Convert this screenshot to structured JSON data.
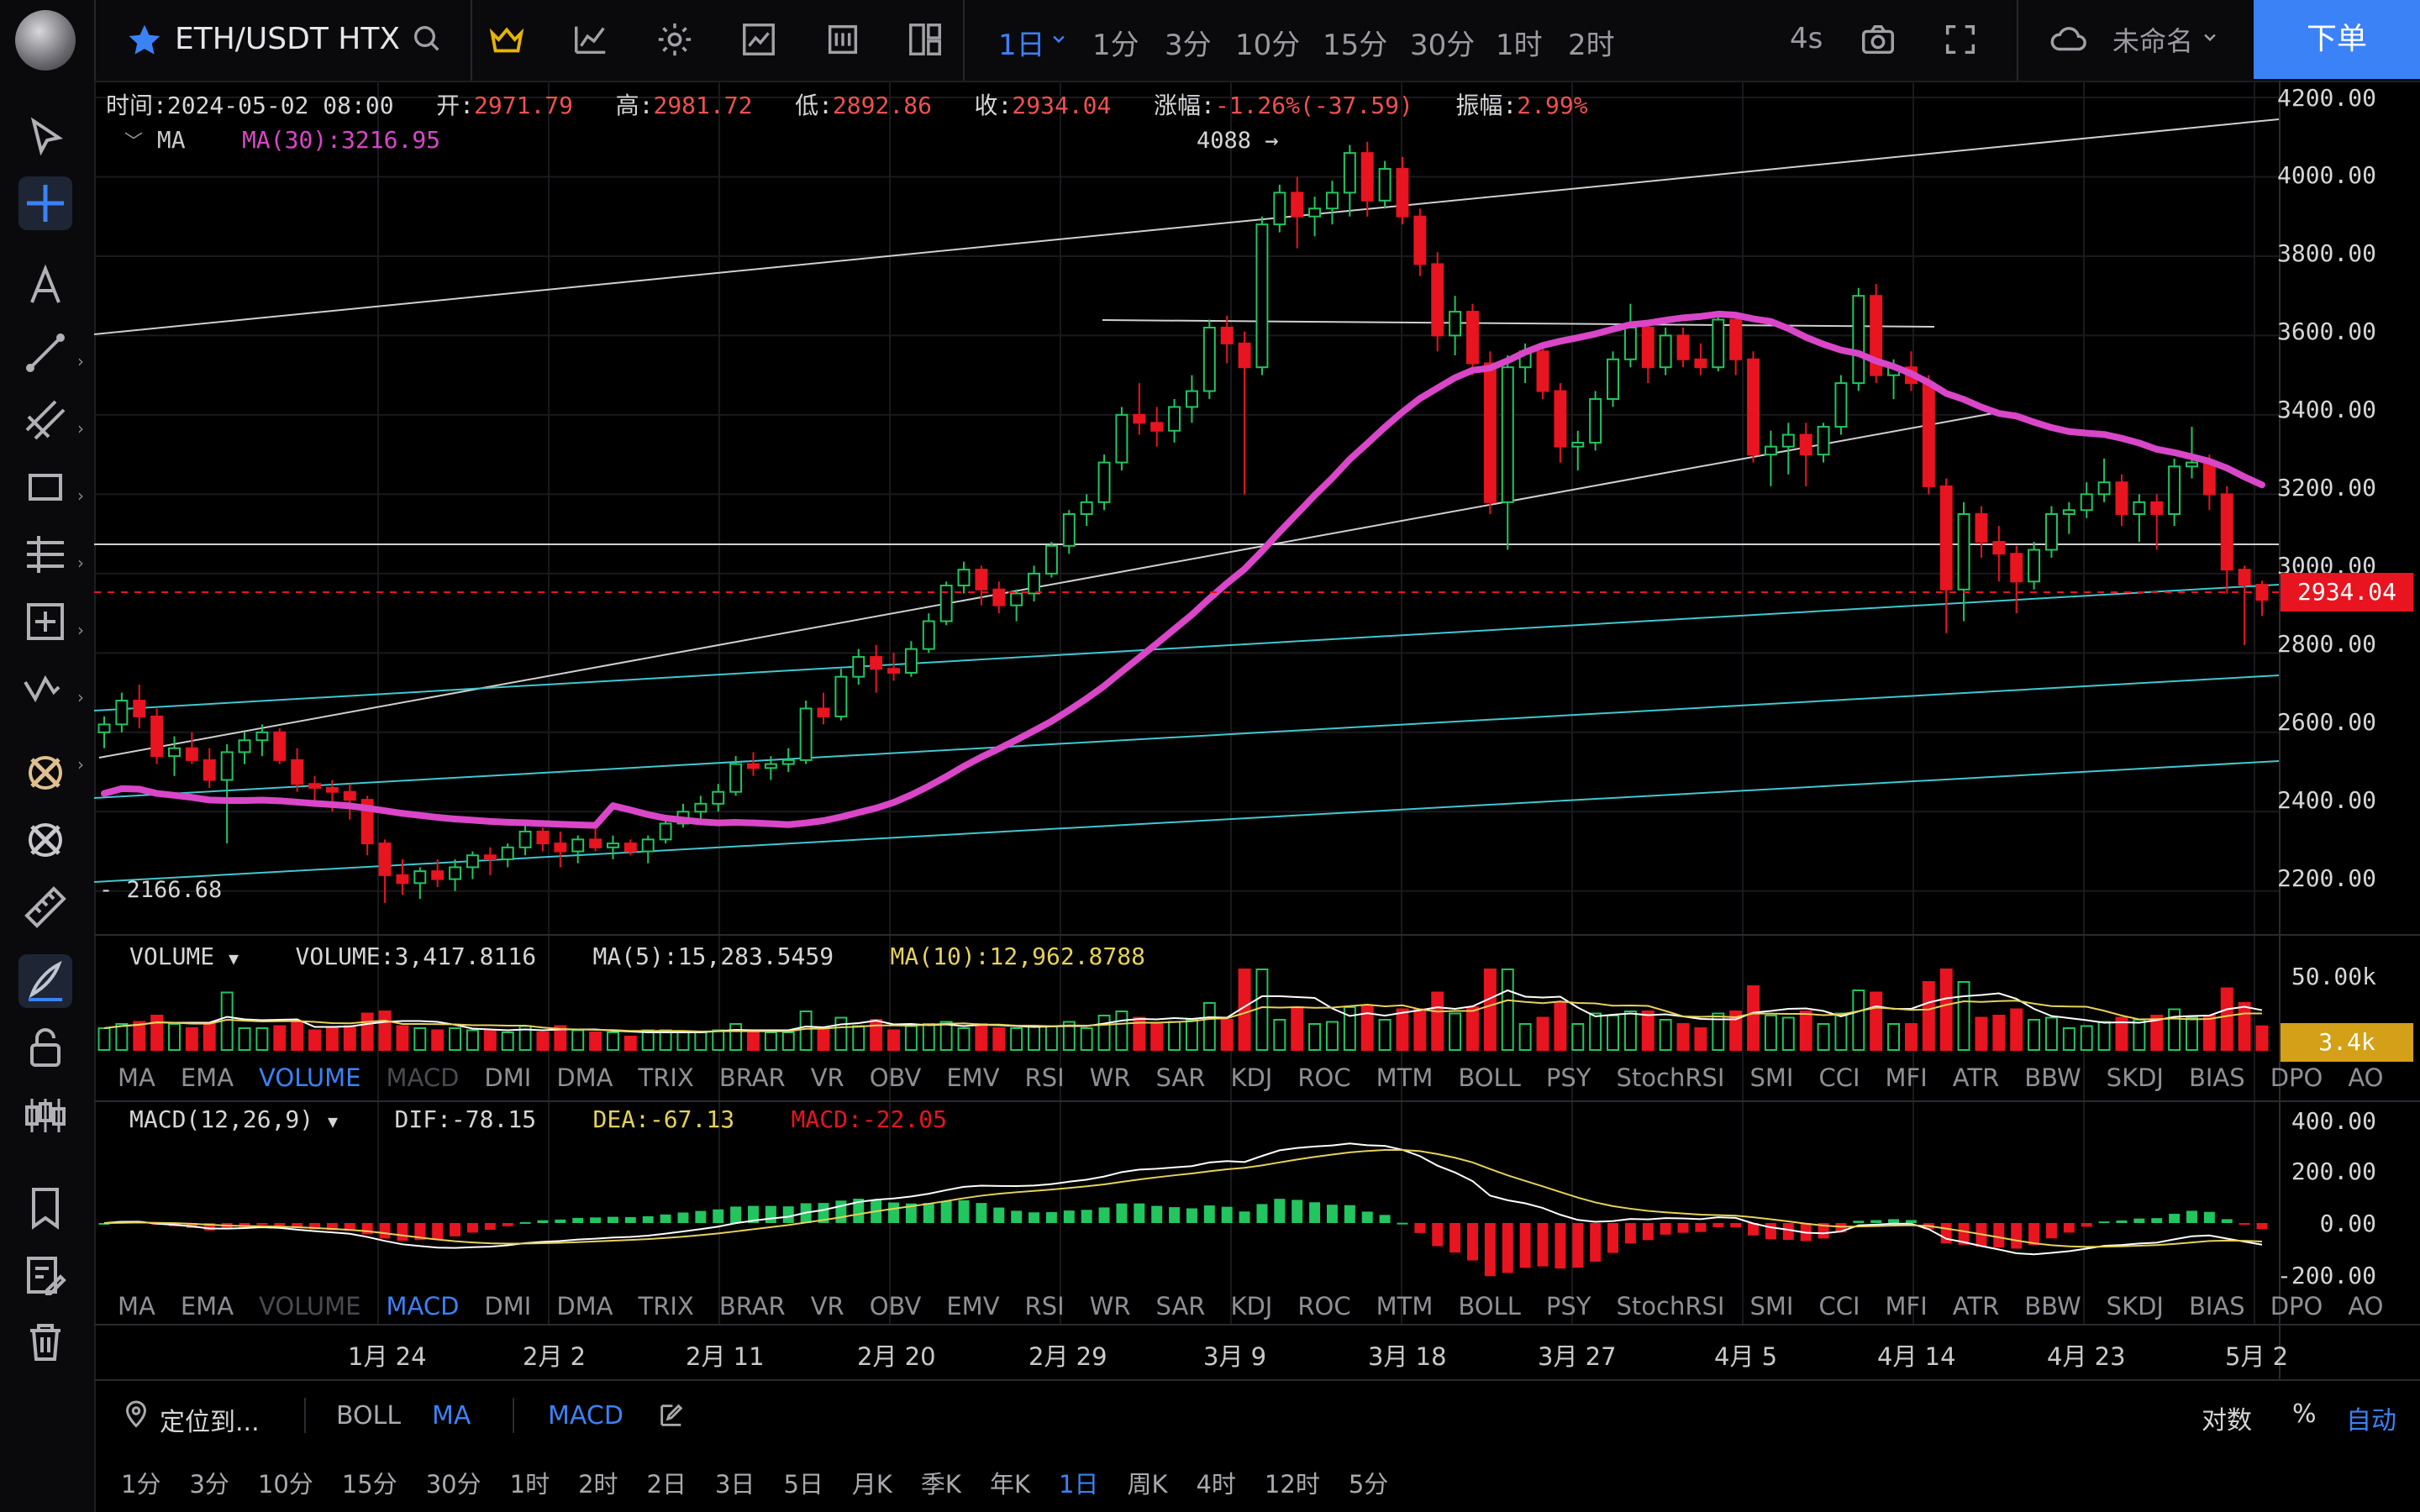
{
  "header": {
    "symbol": "ETH/USDT HTX",
    "timeframes": [
      "1日",
      "1分",
      "3分",
      "10分",
      "15分",
      "30分",
      "1时",
      "2时"
    ],
    "active_timeframe": "1日",
    "refresh": "4s",
    "workspace": "未命名",
    "order_button": "下单"
  },
  "ohlc": {
    "time_label": "时间:",
    "time": "2024-05-02 08:00",
    "open_label": "开:",
    "open": "2971.79",
    "high_label": "高:",
    "high": "2981.72",
    "low_label": "低:",
    "low": "2892.86",
    "close_label": "收:",
    "close": "2934.04",
    "change_label": "涨幅:",
    "change": "-1.26%(-37.59)",
    "amp_label": "振幅:",
    "amp": "2.99%"
  },
  "ma_legend": {
    "name": "MA",
    "ma30": "MA(30):3216.95"
  },
  "price_axis": {
    "ticks": [
      "4200.00",
      "4000.00",
      "3800.00",
      "3600.00",
      "3400.00",
      "3200.00",
      "3000.00",
      "2800.00",
      "2600.00",
      "2400.00",
      "2200.00"
    ],
    "current": "2934.04",
    "high_marker": "4088",
    "low_marker": "2166.68"
  },
  "volume": {
    "name": "VOLUME",
    "value": "VOLUME:3,417.8116",
    "ma5": "MA(5):15,283.5459",
    "ma10": "MA(10):12,962.8788",
    "axis_top": "50.00k",
    "current": "3.4k"
  },
  "indicator_tabs": [
    "MA",
    "EMA",
    "VOLUME",
    "MACD",
    "DMI",
    "DMA",
    "TRIX",
    "BRAR",
    "VR",
    "OBV",
    "EMV",
    "RSI",
    "WR",
    "SAR",
    "KDJ",
    "ROC",
    "MTM",
    "BOLL",
    "PSY",
    "StochRSI",
    "SMI",
    "CCI",
    "MFI",
    "ATR",
    "BBW",
    "SKDJ",
    "BIAS",
    "DPO",
    "AO"
  ],
  "macd": {
    "name": "MACD(12,26,9)",
    "dif": "DIF:-78.15",
    "dea": "DEA:-67.13",
    "macd": "MACD:-22.05",
    "ticks": [
      "400.00",
      "200.00",
      "0.00",
      "-200.00"
    ]
  },
  "x_axis": [
    "1月 24",
    "2月 2",
    "2月 11",
    "2月 20",
    "2月 29",
    "3月 9",
    "3月 18",
    "3月 27",
    "4月 5",
    "4月 14",
    "4月 23",
    "5月 2"
  ],
  "bottom_bar": {
    "locate": "定位到...",
    "boll": "BOLL",
    "ma": "MA",
    "macd": "MACD",
    "log": "对数",
    "percent": "%",
    "auto": "自动",
    "intervals": [
      "1分",
      "3分",
      "10分",
      "15分",
      "30分",
      "1时",
      "2时",
      "2日",
      "3日",
      "5日",
      "月K",
      "季K",
      "年K",
      "1日",
      "周K",
      "4时",
      "12时",
      "5分"
    ],
    "active_interval": "1日"
  },
  "colors": {
    "up": "#22c55e",
    "down": "#e8141f",
    "ma": "#d946c8",
    "accent": "#3b82f6",
    "badge_price": "#e8141f",
    "badge_vol": "#d4a017"
  },
  "chart_data": {
    "type": "candlestick",
    "title": "ETH/USDT HTX",
    "x_range": [
      "2024-01-14",
      "2024-05-02"
    ],
    "ylim": [
      2100,
      4200
    ],
    "grid": true,
    "highest_marked": 4088,
    "lowest_marked": 2166.68,
    "last_close": 2934.04,
    "candles_ohlc": [
      [
        2600,
        2640,
        2560,
        2620
      ],
      [
        2620,
        2700,
        2600,
        2680
      ],
      [
        2680,
        2720,
        2610,
        2640
      ],
      [
        2640,
        2660,
        2520,
        2540
      ],
      [
        2540,
        2590,
        2490,
        2560
      ],
      [
        2560,
        2600,
        2520,
        2530
      ],
      [
        2530,
        2560,
        2460,
        2480
      ],
      [
        2480,
        2570,
        2320,
        2550
      ],
      [
        2550,
        2600,
        2520,
        2580
      ],
      [
        2580,
        2620,
        2540,
        2600
      ],
      [
        2600,
        2610,
        2520,
        2530
      ],
      [
        2530,
        2560,
        2450,
        2470
      ],
      [
        2470,
        2490,
        2420,
        2460
      ],
      [
        2460,
        2480,
        2400,
        2450
      ],
      [
        2450,
        2470,
        2380,
        2430
      ],
      [
        2430,
        2440,
        2290,
        2320
      ],
      [
        2320,
        2330,
        2170,
        2240
      ],
      [
        2240,
        2280,
        2190,
        2220
      ],
      [
        2220,
        2260,
        2180,
        2250
      ],
      [
        2250,
        2280,
        2210,
        2230
      ],
      [
        2230,
        2280,
        2200,
        2260
      ],
      [
        2260,
        2300,
        2230,
        2290
      ],
      [
        2290,
        2310,
        2240,
        2280
      ],
      [
        2280,
        2320,
        2260,
        2310
      ],
      [
        2310,
        2380,
        2290,
        2350
      ],
      [
        2350,
        2360,
        2300,
        2320
      ],
      [
        2320,
        2350,
        2260,
        2300
      ],
      [
        2300,
        2340,
        2270,
        2330
      ],
      [
        2330,
        2360,
        2300,
        2310
      ],
      [
        2310,
        2340,
        2280,
        2320
      ],
      [
        2320,
        2330,
        2290,
        2300
      ],
      [
        2300,
        2340,
        2270,
        2330
      ],
      [
        2330,
        2390,
        2320,
        2370
      ],
      [
        2370,
        2420,
        2360,
        2400
      ],
      [
        2400,
        2440,
        2380,
        2420
      ],
      [
        2420,
        2470,
        2400,
        2450
      ],
      [
        2450,
        2540,
        2440,
        2520
      ],
      [
        2520,
        2550,
        2490,
        2510
      ],
      [
        2510,
        2540,
        2480,
        2520
      ],
      [
        2520,
        2560,
        2500,
        2530
      ],
      [
        2530,
        2680,
        2520,
        2660
      ],
      [
        2660,
        2700,
        2620,
        2640
      ],
      [
        2640,
        2760,
        2630,
        2740
      ],
      [
        2740,
        2810,
        2720,
        2790
      ],
      [
        2790,
        2820,
        2700,
        2760
      ],
      [
        2760,
        2800,
        2730,
        2750
      ],
      [
        2750,
        2830,
        2740,
        2810
      ],
      [
        2810,
        2900,
        2800,
        2880
      ],
      [
        2880,
        2980,
        2870,
        2970
      ],
      [
        2970,
        3030,
        2950,
        3010
      ],
      [
        3010,
        3020,
        2920,
        2960
      ],
      [
        2960,
        2980,
        2900,
        2920
      ],
      [
        2920,
        2960,
        2880,
        2950
      ],
      [
        2950,
        3020,
        2930,
        3000
      ],
      [
        3000,
        3080,
        2990,
        3070
      ],
      [
        3070,
        3160,
        3050,
        3150
      ],
      [
        3150,
        3200,
        3120,
        3180
      ],
      [
        3180,
        3300,
        3160,
        3280
      ],
      [
        3280,
        3420,
        3260,
        3400
      ],
      [
        3400,
        3480,
        3350,
        3380
      ],
      [
        3380,
        3420,
        3320,
        3360
      ],
      [
        3360,
        3440,
        3330,
        3420
      ],
      [
        3420,
        3500,
        3380,
        3460
      ],
      [
        3460,
        3640,
        3440,
        3620
      ],
      [
        3620,
        3650,
        3530,
        3580
      ],
      [
        3580,
        3610,
        3200,
        3520
      ],
      [
        3520,
        3900,
        3500,
        3880
      ],
      [
        3880,
        3980,
        3860,
        3960
      ],
      [
        3960,
        4000,
        3820,
        3900
      ],
      [
        3900,
        3950,
        3850,
        3920
      ],
      [
        3920,
        3990,
        3880,
        3960
      ],
      [
        3960,
        4080,
        3900,
        4060
      ],
      [
        4060,
        4088,
        3900,
        3940
      ],
      [
        3940,
        4040,
        3920,
        4020
      ],
      [
        4020,
        4050,
        3880,
        3900
      ],
      [
        3900,
        3920,
        3750,
        3780
      ],
      [
        3780,
        3810,
        3560,
        3600
      ],
      [
        3600,
        3700,
        3550,
        3660
      ],
      [
        3660,
        3680,
        3500,
        3530
      ],
      [
        3530,
        3560,
        3150,
        3180
      ],
      [
        3180,
        3550,
        3060,
        3520
      ],
      [
        3520,
        3580,
        3480,
        3560
      ],
      [
        3560,
        3570,
        3440,
        3460
      ],
      [
        3460,
        3480,
        3280,
        3320
      ],
      [
        3320,
        3360,
        3260,
        3330
      ],
      [
        3330,
        3460,
        3310,
        3440
      ],
      [
        3440,
        3560,
        3420,
        3540
      ],
      [
        3540,
        3680,
        3520,
        3620
      ],
      [
        3620,
        3640,
        3480,
        3520
      ],
      [
        3520,
        3620,
        3500,
        3600
      ],
      [
        3600,
        3620,
        3520,
        3540
      ],
      [
        3540,
        3580,
        3500,
        3520
      ],
      [
        3520,
        3660,
        3510,
        3640
      ],
      [
        3640,
        3660,
        3500,
        3540
      ],
      [
        3540,
        3560,
        3280,
        3300
      ],
      [
        3300,
        3360,
        3220,
        3320
      ],
      [
        3320,
        3380,
        3250,
        3350
      ],
      [
        3350,
        3380,
        3220,
        3300
      ],
      [
        3300,
        3380,
        3280,
        3370
      ],
      [
        3370,
        3500,
        3350,
        3480
      ],
      [
        3480,
        3720,
        3460,
        3700
      ],
      [
        3700,
        3730,
        3480,
        3500
      ],
      [
        3500,
        3540,
        3440,
        3520
      ],
      [
        3520,
        3560,
        3460,
        3480
      ],
      [
        3480,
        3500,
        3200,
        3220
      ],
      [
        3220,
        3240,
        2850,
        2960
      ],
      [
        2960,
        3180,
        2880,
        3150
      ],
      [
        3150,
        3170,
        3040,
        3080
      ],
      [
        3080,
        3120,
        2980,
        3050
      ],
      [
        3050,
        3070,
        2900,
        2980
      ],
      [
        2980,
        3080,
        2960,
        3060
      ],
      [
        3060,
        3170,
        3040,
        3150
      ],
      [
        3150,
        3180,
        3100,
        3160
      ],
      [
        3160,
        3230,
        3140,
        3200
      ],
      [
        3200,
        3290,
        3180,
        3230
      ],
      [
        3230,
        3250,
        3120,
        3150
      ],
      [
        3150,
        3200,
        3080,
        3180
      ],
      [
        3180,
        3200,
        3060,
        3150
      ],
      [
        3150,
        3290,
        3120,
        3270
      ],
      [
        3270,
        3370,
        3240,
        3280
      ],
      [
        3280,
        3300,
        3160,
        3200
      ],
      [
        3200,
        3220,
        2950,
        3010
      ],
      [
        3010,
        3020,
        2820,
        2972
      ],
      [
        2972,
        2982,
        2893,
        2934
      ]
    ]
  }
}
